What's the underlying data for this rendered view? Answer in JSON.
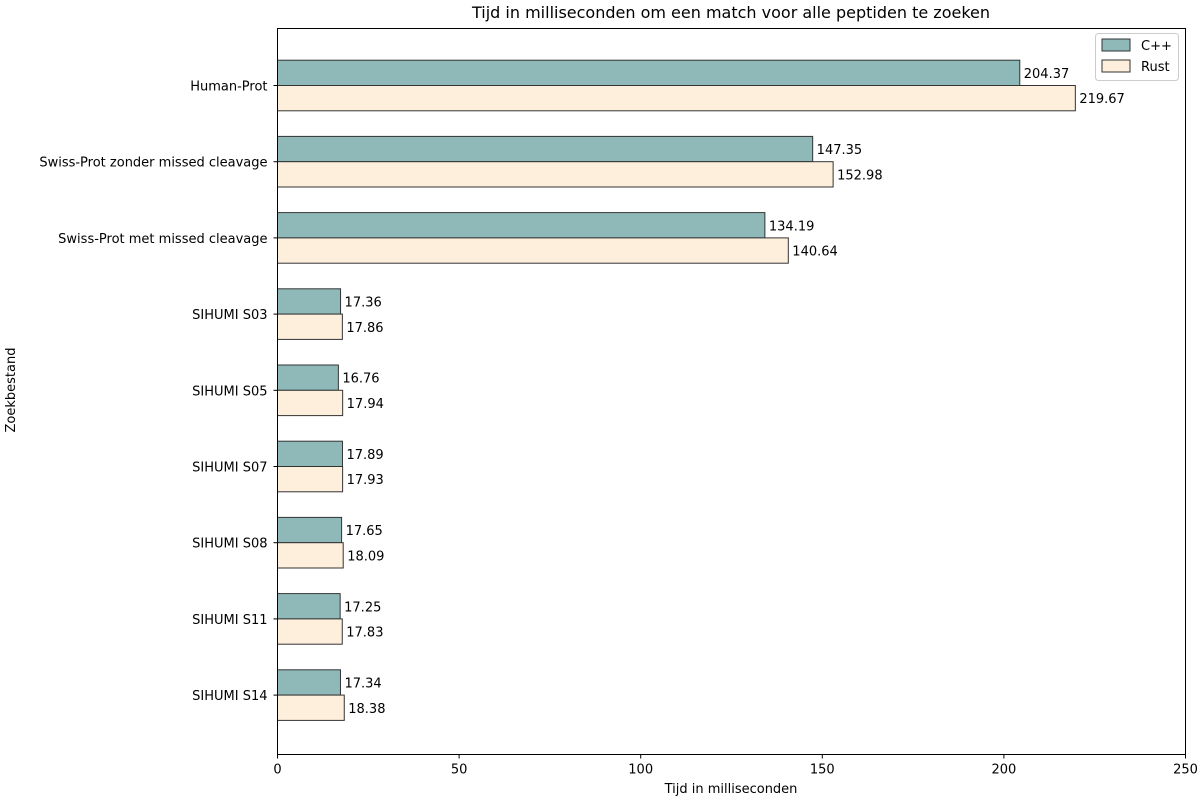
{
  "chart_data": {
    "type": "bar",
    "orientation": "horizontal",
    "title": "Tijd in milliseconden om een match voor alle peptiden te zoeken",
    "xlabel": "Tijd in milliseconden",
    "ylabel": "Zoekbestand",
    "xlim": [
      0,
      250
    ],
    "xticks": [
      0,
      50,
      100,
      150,
      200,
      250
    ],
    "grid": false,
    "legend_position": "top-right",
    "categories": [
      "Human-Prot",
      "Swiss-Prot zonder missed cleavage",
      "Swiss-Prot met missed cleavage",
      "SIHUMI S03",
      "SIHUMI S05",
      "SIHUMI S07",
      "SIHUMI S08",
      "SIHUMI S11",
      "SIHUMI S14"
    ],
    "series": [
      {
        "name": "C++",
        "color": "#8fb9b9",
        "values": [
          204.37,
          147.35,
          134.19,
          17.36,
          16.76,
          17.89,
          17.65,
          17.25,
          17.34
        ]
      },
      {
        "name": "Rust",
        "color": "#fdefdc",
        "values": [
          219.67,
          152.98,
          140.64,
          17.86,
          17.94,
          17.93,
          18.09,
          17.83,
          18.38
        ]
      }
    ]
  }
}
